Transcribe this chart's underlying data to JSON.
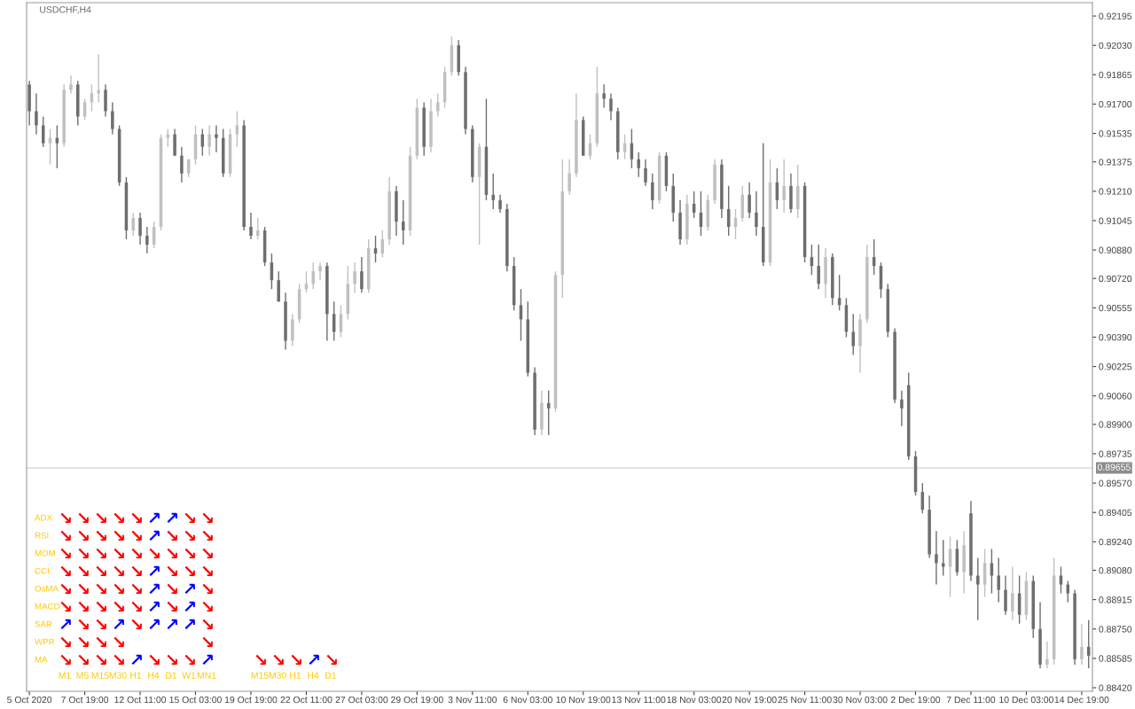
{
  "chart_data": [
    {
      "type": "candlestick",
      "title": "USDCHF,H4",
      "categories": [
        "5 Oct 2020",
        null,
        null,
        null,
        null,
        null,
        null,
        null,
        "7 Oct 19:00",
        null,
        null,
        null,
        null,
        null,
        null,
        null,
        "12 Oct 11:00",
        null,
        null,
        null,
        null,
        null,
        null,
        null,
        "15 Oct 03:00",
        null,
        null,
        null,
        null,
        null,
        null,
        null,
        "19 Oct 19:00",
        null,
        null,
        null,
        null,
        null,
        null,
        null,
        "22 Oct 11:00",
        null,
        null,
        null,
        null,
        null,
        null,
        null,
        "27 Oct 03:00",
        null,
        null,
        null,
        null,
        null,
        null,
        null,
        "29 Oct 19:00",
        null,
        null,
        null,
        null,
        null,
        null,
        null,
        "3 Nov 11:00",
        null,
        null,
        null,
        null,
        null,
        null,
        null,
        "6 Nov 03:00",
        null,
        null,
        null,
        null,
        null,
        null,
        null,
        "10 Nov 19:00",
        null,
        null,
        null,
        null,
        null,
        null,
        null,
        "13 Nov 11:00",
        null,
        null,
        null,
        null,
        null,
        null,
        null,
        "18 Nov 03:00",
        null,
        null,
        null,
        null,
        null,
        null,
        null,
        "20 Nov 19:00",
        null,
        null,
        null,
        null,
        null,
        null,
        null,
        "25 Nov 11:00",
        null,
        null,
        null,
        null,
        null,
        null,
        null,
        "30 Nov 03:00",
        null,
        null,
        null,
        null,
        null,
        null,
        null,
        "2 Dec 19:00",
        null,
        null,
        null,
        null,
        null,
        null,
        null,
        "7 Dec 11:00",
        null,
        null,
        null,
        null,
        null,
        null,
        null,
        "10 Dec 03:00",
        null,
        null,
        null,
        null,
        null,
        null,
        null,
        "14 Dec 19:00",
        null
      ],
      "ohlc": [
        [
          0.9181,
          0.9183,
          0.9158,
          0.9166
        ],
        [
          0.9166,
          0.9176,
          0.9153,
          0.9158
        ],
        [
          0.9158,
          0.9163,
          0.9146,
          0.9148
        ],
        [
          0.9148,
          0.9156,
          0.9136,
          0.9151
        ],
        [
          0.9151,
          0.9158,
          0.9134,
          0.9148
        ],
        [
          0.9148,
          0.9181,
          0.9146,
          0.9178
        ],
        [
          0.9178,
          0.9186,
          0.9176,
          0.9181
        ],
        [
          0.9181,
          0.9183,
          0.9158,
          0.9163
        ],
        [
          0.9163,
          0.9173,
          0.9161,
          0.9171
        ],
        [
          0.9171,
          0.9181,
          0.9166,
          0.9176
        ],
        [
          0.9176,
          0.9198,
          0.9171,
          0.9178
        ],
        [
          0.9178,
          0.9181,
          0.9163,
          0.9166
        ],
        [
          0.9166,
          0.9171,
          0.9153,
          0.9156
        ],
        [
          0.9156,
          0.9158,
          0.9124,
          0.9126
        ],
        [
          0.9126,
          0.9129,
          0.9094,
          0.9099
        ],
        [
          0.9099,
          0.9109,
          0.9096,
          0.9106
        ],
        [
          0.9106,
          0.9109,
          0.9091,
          0.9096
        ],
        [
          0.9096,
          0.9101,
          0.9086,
          0.9091
        ],
        [
          0.9091,
          0.9104,
          0.9089,
          0.9101
        ],
        [
          0.9101,
          0.9153,
          0.9099,
          0.9151
        ],
        [
          0.9151,
          0.9156,
          0.9146,
          0.9153
        ],
        [
          0.9153,
          0.9156,
          0.9141,
          0.9141
        ],
        [
          0.9141,
          0.9146,
          0.9126,
          0.9131
        ],
        [
          0.9131,
          0.9139,
          0.9129,
          0.9139
        ],
        [
          0.9139,
          0.9158,
          0.9136,
          0.9153
        ],
        [
          0.9153,
          0.9156,
          0.9141,
          0.9146
        ],
        [
          0.9146,
          0.9158,
          0.9141,
          0.9153
        ],
        [
          0.9153,
          0.9158,
          0.9143,
          0.9151
        ],
        [
          0.9151,
          0.9156,
          0.9129,
          0.9131
        ],
        [
          0.9131,
          0.9156,
          0.9129,
          0.9153
        ],
        [
          0.9153,
          0.9166,
          0.9146,
          0.9158
        ],
        [
          0.9158,
          0.9161,
          0.9099,
          0.9101
        ],
        [
          0.9101,
          0.9109,
          0.9094,
          0.9096
        ],
        [
          0.9096,
          0.9106,
          0.9094,
          0.9099
        ],
        [
          0.9099,
          0.9101,
          0.9079,
          0.9081
        ],
        [
          0.9081,
          0.9086,
          0.9066,
          0.9071
        ],
        [
          0.9071,
          0.9076,
          0.9059,
          0.9059
        ],
        [
          0.9059,
          0.9064,
          0.9032,
          0.9037
        ],
        [
          0.9037,
          0.9052,
          0.9034,
          0.9049
        ],
        [
          0.9049,
          0.9069,
          0.9047,
          0.9066
        ],
        [
          0.9066,
          0.9076,
          0.9064,
          0.9069
        ],
        [
          0.9069,
          0.9081,
          0.9066,
          0.9076
        ],
        [
          0.9076,
          0.9081,
          0.9071,
          0.9079
        ],
        [
          0.9079,
          0.9081,
          0.9037,
          0.9052
        ],
        [
          0.9052,
          0.9059,
          0.9037,
          0.9042
        ],
        [
          0.9042,
          0.9057,
          0.9039,
          0.9052
        ],
        [
          0.9052,
          0.9079,
          0.9049,
          0.9069
        ],
        [
          0.9069,
          0.9081,
          0.9064,
          0.9076
        ],
        [
          0.9076,
          0.9084,
          0.9064,
          0.9066
        ],
        [
          0.9066,
          0.9094,
          0.9064,
          0.9089
        ],
        [
          0.9089,
          0.9096,
          0.9081,
          0.9086
        ],
        [
          0.9086,
          0.9099,
          0.9084,
          0.9094
        ],
        [
          0.9094,
          0.9129,
          0.9091,
          0.9121
        ],
        [
          0.9121,
          0.9124,
          0.9096,
          0.9104
        ],
        [
          0.9104,
          0.9116,
          0.9091,
          0.9099
        ],
        [
          0.9099,
          0.9146,
          0.9096,
          0.9141
        ],
        [
          0.9141,
          0.9173,
          0.9139,
          0.9168
        ],
        [
          0.9168,
          0.9171,
          0.9141,
          0.9146
        ],
        [
          0.9146,
          0.9173,
          0.9143,
          0.9166
        ],
        [
          0.9166,
          0.9176,
          0.9163,
          0.9171
        ],
        [
          0.9171,
          0.9191,
          0.9168,
          0.9188
        ],
        [
          0.9188,
          0.9208,
          0.9186,
          0.9203
        ],
        [
          0.9203,
          0.9206,
          0.9186,
          0.9188
        ],
        [
          0.9188,
          0.9191,
          0.9153,
          0.9156
        ],
        [
          0.9156,
          0.9158,
          0.9126,
          0.9129
        ],
        [
          0.9129,
          0.9148,
          0.9091,
          0.9146
        ],
        [
          0.9146,
          0.9173,
          0.9116,
          0.9119
        ],
        [
          0.9119,
          0.9131,
          0.9111,
          0.9116
        ],
        [
          0.9116,
          0.9119,
          0.9109,
          0.9111
        ],
        [
          0.9111,
          0.9114,
          0.9076,
          0.9079
        ],
        [
          0.9079,
          0.9084,
          0.9054,
          0.9057
        ],
        [
          0.9057,
          0.9066,
          0.9037,
          0.9049
        ],
        [
          0.9049,
          0.9059,
          0.9017,
          0.9019
        ],
        [
          0.9019,
          0.9022,
          0.8984,
          0.8987
        ],
        [
          0.8987,
          0.9009,
          0.8984,
          0.9002
        ],
        [
          0.9002,
          0.9009,
          0.8984,
          0.8999
        ],
        [
          0.8999,
          0.9076,
          0.8997,
          0.9074
        ],
        [
          0.9074,
          0.9139,
          0.9061,
          0.9121
        ],
        [
          0.9121,
          0.9139,
          0.9119,
          0.9131
        ],
        [
          0.9131,
          0.9176,
          0.9129,
          0.9161
        ],
        [
          0.9161,
          0.9163,
          0.9141,
          0.9141
        ],
        [
          0.9141,
          0.9153,
          0.9139,
          0.9148
        ],
        [
          0.9148,
          0.9191,
          0.9146,
          0.9176
        ],
        [
          0.9176,
          0.9181,
          0.9168,
          0.9173
        ],
        [
          0.9173,
          0.9176,
          0.9161,
          0.9166
        ],
        [
          0.9166,
          0.9168,
          0.9139,
          0.9143
        ],
        [
          0.9143,
          0.9153,
          0.9139,
          0.9148
        ],
        [
          0.9148,
          0.9156,
          0.9134,
          0.9139
        ],
        [
          0.9139,
          0.9143,
          0.9129,
          0.9134
        ],
        [
          0.9134,
          0.9139,
          0.9124,
          0.9126
        ],
        [
          0.9126,
          0.9131,
          0.9111,
          0.9116
        ],
        [
          0.9116,
          0.9143,
          0.9114,
          0.9141
        ],
        [
          0.9141,
          0.9143,
          0.9121,
          0.9124
        ],
        [
          0.9124,
          0.9131,
          0.9104,
          0.9109
        ],
        [
          0.9109,
          0.9116,
          0.9091,
          0.9094
        ],
        [
          0.9094,
          0.9119,
          0.9091,
          0.9114
        ],
        [
          0.9114,
          0.9121,
          0.9106,
          0.9109
        ],
        [
          0.9109,
          0.9121,
          0.9096,
          0.9101
        ],
        [
          0.9101,
          0.9119,
          0.9099,
          0.9116
        ],
        [
          0.9116,
          0.9139,
          0.9114,
          0.9136
        ],
        [
          0.9136,
          0.9139,
          0.9106,
          0.9111
        ],
        [
          0.9111,
          0.9124,
          0.9096,
          0.9101
        ],
        [
          0.9101,
          0.9111,
          0.9094,
          0.9106
        ],
        [
          0.9106,
          0.9124,
          0.9104,
          0.9119
        ],
        [
          0.9119,
          0.9126,
          0.9106,
          0.9109
        ],
        [
          0.9109,
          0.9121,
          0.9096,
          0.9101
        ],
        [
          0.9101,
          0.9148,
          0.9079,
          0.9081
        ],
        [
          0.9081,
          0.9139,
          0.9079,
          0.9126
        ],
        [
          0.9126,
          0.9134,
          0.9111,
          0.9116
        ],
        [
          0.9116,
          0.9139,
          0.9109,
          0.9124
        ],
        [
          0.9124,
          0.9131,
          0.9109,
          0.9111
        ],
        [
          0.9111,
          0.9136,
          0.9106,
          0.9124
        ],
        [
          0.9124,
          0.9126,
          0.9081,
          0.9084
        ],
        [
          0.9084,
          0.9091,
          0.9074,
          0.9079
        ],
        [
          0.9079,
          0.9091,
          0.9066,
          0.9069
        ],
        [
          0.9069,
          0.9089,
          0.9061,
          0.9084
        ],
        [
          0.9084,
          0.9086,
          0.9057,
          0.9061
        ],
        [
          0.9061,
          0.9074,
          0.9054,
          0.9057
        ],
        [
          0.9057,
          0.9061,
          0.9039,
          0.9042
        ],
        [
          0.9042,
          0.9052,
          0.9029,
          0.9034
        ],
        [
          0.9034,
          0.9052,
          0.9019,
          0.9049
        ],
        [
          0.9049,
          0.9091,
          0.9047,
          0.9084
        ],
        [
          0.9084,
          0.9094,
          0.9074,
          0.9079
        ],
        [
          0.9079,
          0.9081,
          0.9061,
          0.9066
        ],
        [
          0.9066,
          0.9069,
          0.9039,
          0.9042
        ],
        [
          0.9042,
          0.9044,
          0.9002,
          0.9004
        ],
        [
          0.9004,
          0.9009,
          0.8989,
          0.8999
        ],
        [
          0.9012,
          0.9019,
          0.897,
          0.8972
        ],
        [
          0.8972,
          0.8975,
          0.895,
          0.8952
        ],
        [
          0.8952,
          0.8957,
          0.894,
          0.8942
        ],
        [
          0.8942,
          0.895,
          0.8915,
          0.8917
        ],
        [
          0.8917,
          0.893,
          0.89,
          0.8912
        ],
        [
          0.8912,
          0.8925,
          0.8905,
          0.891
        ],
        [
          0.891,
          0.8927,
          0.8893,
          0.892
        ],
        [
          0.892,
          0.8925,
          0.8905,
          0.8907
        ],
        [
          0.8907,
          0.893,
          0.8895,
          0.8922
        ],
        [
          0.894,
          0.8947,
          0.8902,
          0.8905
        ],
        [
          0.8905,
          0.8915,
          0.888,
          0.89
        ],
        [
          0.89,
          0.892,
          0.8893,
          0.8912
        ],
        [
          0.8912,
          0.892,
          0.8895,
          0.8905
        ],
        [
          0.8905,
          0.8915,
          0.889,
          0.8897
        ],
        [
          0.8897,
          0.8905,
          0.8883,
          0.8885
        ],
        [
          0.8885,
          0.891,
          0.888,
          0.8895
        ],
        [
          0.8895,
          0.8905,
          0.8878,
          0.8883
        ],
        [
          0.8883,
          0.8907,
          0.888,
          0.8902
        ],
        [
          0.8902,
          0.8905,
          0.887,
          0.8875
        ],
        [
          0.8875,
          0.889,
          0.8853,
          0.8855
        ],
        [
          0.8855,
          0.8868,
          0.8853,
          0.8858
        ],
        [
          0.8858,
          0.8915,
          0.8855,
          0.8905
        ],
        [
          0.8905,
          0.891,
          0.8895,
          0.89
        ],
        [
          0.89,
          0.8902,
          0.889,
          0.8895
        ],
        [
          0.8895,
          0.8897,
          0.8855,
          0.8858
        ],
        [
          0.8858,
          0.8878,
          0.8855,
          0.8865
        ],
        [
          0.8865,
          0.888,
          0.8853,
          0.886
        ]
      ],
      "colors": [
        "#6e6e6e",
        "#6e6e6e",
        "#6e6e6e",
        "#c0c0c0",
        "#6e6e6e",
        "#c0c0c0",
        "#c0c0c0",
        "#6e6e6e",
        "#c0c0c0",
        "#c0c0c0",
        "#c0c0c0",
        "#6e6e6e",
        "#6e6e6e",
        "#6e6e6e",
        "#6e6e6e",
        "#c0c0c0",
        "#6e6e6e",
        "#6e6e6e",
        "#c0c0c0",
        "#c0c0c0",
        "#c0c0c0",
        "#6e6e6e",
        "#6e6e6e",
        "#c0c0c0",
        "#c0c0c0",
        "#6e6e6e",
        "#c0c0c0",
        "#6e6e6e",
        "#6e6e6e",
        "#c0c0c0",
        "#c0c0c0",
        "#6e6e6e",
        "#6e6e6e",
        "#c0c0c0",
        "#6e6e6e",
        "#6e6e6e",
        "#6e6e6e",
        "#6e6e6e",
        "#c0c0c0",
        "#c0c0c0",
        "#c0c0c0",
        "#c0c0c0",
        "#c0c0c0",
        "#6e6e6e",
        "#6e6e6e",
        "#c0c0c0",
        "#c0c0c0",
        "#c0c0c0",
        "#6e6e6e",
        "#c0c0c0",
        "#6e6e6e",
        "#c0c0c0",
        "#c0c0c0",
        "#6e6e6e",
        "#6e6e6e",
        "#c0c0c0",
        "#c0c0c0",
        "#6e6e6e",
        "#c0c0c0",
        "#c0c0c0",
        "#c0c0c0",
        "#c0c0c0",
        "#6e6e6e",
        "#6e6e6e",
        "#6e6e6e",
        "#c0c0c0",
        "#6e6e6e",
        "#6e6e6e",
        "#6e6e6e",
        "#6e6e6e",
        "#6e6e6e",
        "#6e6e6e",
        "#6e6e6e",
        "#6e6e6e",
        "#c0c0c0",
        "#6e6e6e",
        "#c0c0c0",
        "#c0c0c0",
        "#c0c0c0",
        "#c0c0c0",
        "#6e6e6e",
        "#c0c0c0",
        "#c0c0c0",
        "#6e6e6e",
        "#6e6e6e",
        "#6e6e6e",
        "#c0c0c0",
        "#6e6e6e",
        "#6e6e6e",
        "#6e6e6e",
        "#6e6e6e",
        "#c0c0c0",
        "#6e6e6e",
        "#6e6e6e",
        "#6e6e6e",
        "#c0c0c0",
        "#6e6e6e",
        "#6e6e6e",
        "#c0c0c0",
        "#c0c0c0",
        "#6e6e6e",
        "#6e6e6e",
        "#c0c0c0",
        "#c0c0c0",
        "#6e6e6e",
        "#6e6e6e",
        "#6e6e6e",
        "#c0c0c0",
        "#6e6e6e",
        "#c0c0c0",
        "#6e6e6e",
        "#c0c0c0",
        "#6e6e6e",
        "#6e6e6e",
        "#6e6e6e",
        "#c0c0c0",
        "#6e6e6e",
        "#6e6e6e",
        "#6e6e6e",
        "#6e6e6e",
        "#c0c0c0",
        "#c0c0c0",
        "#6e6e6e",
        "#6e6e6e",
        "#6e6e6e",
        "#6e6e6e",
        "#6e6e6e",
        "#6e6e6e",
        "#6e6e6e",
        "#6e6e6e",
        "#6e6e6e",
        "#6e6e6e",
        "#6e6e6e",
        "#c0c0c0",
        "#6e6e6e",
        "#c0c0c0",
        "#6e6e6e",
        "#6e6e6e",
        "#c0c0c0",
        "#6e6e6e",
        "#6e6e6e",
        "#6e6e6e",
        "#c0c0c0",
        "#6e6e6e",
        "#c0c0c0",
        "#6e6e6e",
        "#6e6e6e",
        "#c0c0c0",
        "#c0c0c0",
        "#6e6e6e",
        "#6e6e6e",
        "#6e6e6e",
        "#c0c0c0",
        "#6e6e6e"
      ],
      "ylim": [
        0.884,
        0.9227
      ],
      "yticks": [
        {
          "value": 0.92195,
          "label": "0.92195"
        },
        {
          "value": 0.9203,
          "label": "0.92030"
        },
        {
          "value": 0.91865,
          "label": "0.91865"
        },
        {
          "value": 0.917,
          "label": "0.91700"
        },
        {
          "value": 0.91535,
          "label": "0.91535"
        },
        {
          "value": 0.91375,
          "label": "0.91375"
        },
        {
          "value": 0.9121,
          "label": "0.91210"
        },
        {
          "value": 0.91045,
          "label": "0.91045"
        },
        {
          "value": 0.9088,
          "label": "0.90880"
        },
        {
          "value": 0.9072,
          "label": "0.90720"
        },
        {
          "value": 0.90555,
          "label": "0.90555"
        },
        {
          "value": 0.9039,
          "label": "0.90390"
        },
        {
          "value": 0.90225,
          "label": "0.90225"
        },
        {
          "value": 0.9006,
          "label": "0.90060"
        },
        {
          "value": 0.899,
          "label": "0.89900"
        },
        {
          "value": 0.89735,
          "label": "0.89735"
        },
        {
          "value": 0.8957,
          "label": "0.89570"
        },
        {
          "value": 0.89405,
          "label": "0.89405"
        },
        {
          "value": 0.8924,
          "label": "0.89240"
        },
        {
          "value": 0.8908,
          "label": "0.89080"
        },
        {
          "value": 0.88915,
          "label": "0.88915"
        },
        {
          "value": 0.8875,
          "label": "0.88750"
        },
        {
          "value": 0.88585,
          "label": "0.88585"
        },
        {
          "value": 0.8842,
          "label": "0.88420"
        }
      ],
      "ref_lines": [
        {
          "axis": "y",
          "value": 0.89655,
          "label": "0.89655",
          "color": "#c8c8c8"
        }
      ]
    },
    {
      "type": "other",
      "y_categories": [
        "ADX",
        "RSI",
        "MOM",
        "CCI",
        "OsMA",
        "MACD",
        "SAR",
        "WPR",
        "MA"
      ],
      "categories": [
        "M1",
        "M5",
        "M15",
        "M30",
        "H1",
        "H4",
        "D1",
        "W1",
        "MN1"
      ],
      "cell_labels": [
        [
          "↘",
          "↘",
          "↘",
          "↘",
          "↘",
          "↗",
          "↗",
          "↘",
          "↘"
        ],
        [
          "↘",
          "↘",
          "↘",
          "↘",
          "↘",
          "↗",
          "↘",
          "↘",
          "↘"
        ],
        [
          "↘",
          "↘",
          "↘",
          "↘",
          "↘",
          "↘",
          "↘",
          "↘",
          "↘"
        ],
        [
          "↘",
          "↘",
          "↘",
          "↘",
          "↘",
          "↗",
          "↘",
          "↘",
          "↘"
        ],
        [
          "↘",
          "↘",
          "↘",
          "↘",
          "↘",
          "↗",
          "↘",
          "↗",
          "↘"
        ],
        [
          "↘",
          "↘",
          "↘",
          "↘",
          "↘",
          "↗",
          "↘",
          "↗",
          "↘"
        ],
        [
          "↗",
          "↘",
          "↘",
          "↗",
          "↘",
          "↗",
          "↗",
          "↗",
          "↘"
        ],
        [
          "↘",
          "↘",
          "↘",
          "↘",
          null,
          null,
          null,
          null,
          "↘"
        ],
        [
          "↘",
          "↘",
          "↘",
          "↘",
          "↗",
          "↘",
          "↘",
          "↘",
          "↗"
        ]
      ],
      "colors": [
        [
          "#ff0000",
          "#ff0000",
          "#ff0000",
          "#ff0000",
          "#ff0000",
          "#0000ff",
          "#0000ff",
          "#ff0000",
          "#ff0000"
        ],
        [
          "#ff0000",
          "#ff0000",
          "#ff0000",
          "#ff0000",
          "#ff0000",
          "#0000ff",
          "#ff0000",
          "#ff0000",
          "#ff0000"
        ],
        [
          "#ff0000",
          "#ff0000",
          "#ff0000",
          "#ff0000",
          "#ff0000",
          "#ff0000",
          "#ff0000",
          "#ff0000",
          "#ff0000"
        ],
        [
          "#ff0000",
          "#ff0000",
          "#ff0000",
          "#ff0000",
          "#ff0000",
          "#0000ff",
          "#ff0000",
          "#ff0000",
          "#ff0000"
        ],
        [
          "#ff0000",
          "#ff0000",
          "#ff0000",
          "#ff0000",
          "#ff0000",
          "#0000ff",
          "#ff0000",
          "#0000ff",
          "#ff0000"
        ],
        [
          "#ff0000",
          "#ff0000",
          "#ff0000",
          "#ff0000",
          "#ff0000",
          "#0000ff",
          "#ff0000",
          "#0000ff",
          "#ff0000"
        ],
        [
          "#0000ff",
          "#ff0000",
          "#ff0000",
          "#0000ff",
          "#ff0000",
          "#0000ff",
          "#0000ff",
          "#0000ff",
          "#ff0000"
        ],
        [
          "#ff0000",
          "#ff0000",
          "#ff0000",
          "#ff0000",
          null,
          null,
          null,
          null,
          "#ff0000"
        ],
        [
          "#ff0000",
          "#ff0000",
          "#ff0000",
          "#ff0000",
          "#0000ff",
          "#ff0000",
          "#ff0000",
          "#ff0000",
          "#0000ff"
        ]
      ]
    },
    {
      "type": "other",
      "y_categories": [
        null
      ],
      "categories": [
        "M15",
        "M30",
        "H1",
        "H4",
        "D1"
      ],
      "cell_labels": [
        [
          "↘",
          "↘",
          "↘",
          "↗",
          "↘"
        ]
      ],
      "colors": [
        [
          "#ff0000",
          "#ff0000",
          "#ff0000",
          "#0000ff",
          "#ff0000"
        ]
      ]
    }
  ]
}
